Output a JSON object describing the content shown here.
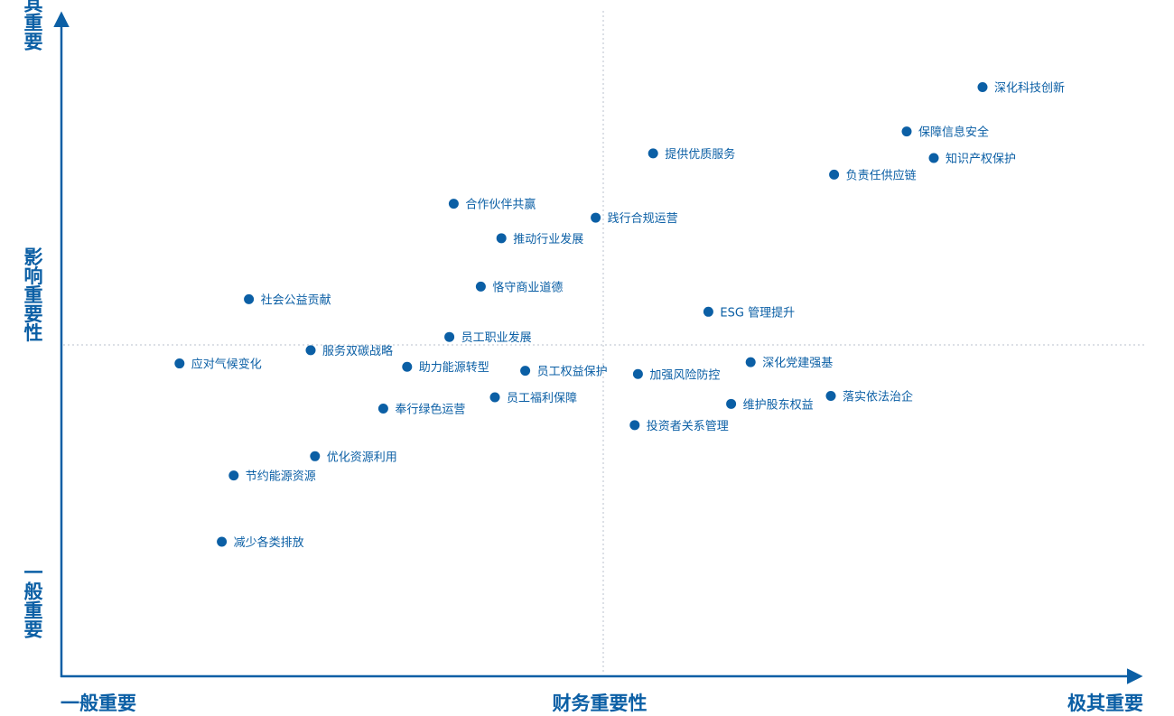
{
  "chart_data": {
    "type": "scatter",
    "xlabel": "财务重要性",
    "ylabel": "影响重要性",
    "x_low_label": "一般重要",
    "x_high_label": "极其重要",
    "y_low_label": "一般重要",
    "y_high_label": "极其重要",
    "xlim": [
      0,
      100
    ],
    "ylim": [
      0,
      100
    ],
    "x_divider": 50,
    "y_divider": 50,
    "grid": false,
    "accent_color": "#0b5fa5",
    "divider_color": "#b8c2cc",
    "points": [
      {
        "label": "深化科技创新",
        "x": 85.0,
        "y": 88.9
      },
      {
        "label": "保障信息安全",
        "x": 78.0,
        "y": 82.2
      },
      {
        "label": "知识产权保护",
        "x": 80.5,
        "y": 78.2
      },
      {
        "label": "负责任供应链",
        "x": 71.3,
        "y": 75.7
      },
      {
        "label": "提供优质服务",
        "x": 54.6,
        "y": 78.9
      },
      {
        "label": "践行合规运营",
        "x": 49.3,
        "y": 69.2
      },
      {
        "label": "合作伙伴共赢",
        "x": 36.2,
        "y": 71.3
      },
      {
        "label": "推动行业发展",
        "x": 40.6,
        "y": 66.1
      },
      {
        "label": "恪守商业道德",
        "x": 38.7,
        "y": 58.8
      },
      {
        "label": "社会公益贡献",
        "x": 17.3,
        "y": 56.9
      },
      {
        "label": "ESG 管理提升",
        "x": 59.7,
        "y": 55.0
      },
      {
        "label": "员工职业发展",
        "x": 35.8,
        "y": 51.2
      },
      {
        "label": "服务双碳战略",
        "x": 23.0,
        "y": 49.2
      },
      {
        "label": "应对气候变化",
        "x": 10.9,
        "y": 47.2
      },
      {
        "label": "助力能源转型",
        "x": 31.9,
        "y": 46.7
      },
      {
        "label": "员工权益保护",
        "x": 42.8,
        "y": 46.1
      },
      {
        "label": "加强风险防控",
        "x": 53.2,
        "y": 45.6
      },
      {
        "label": "深化党建强基",
        "x": 63.6,
        "y": 47.4
      },
      {
        "label": "员工福利保障",
        "x": 40.0,
        "y": 42.1
      },
      {
        "label": "奉行绿色运营",
        "x": 29.7,
        "y": 40.4
      },
      {
        "label": "维护股东权益",
        "x": 61.8,
        "y": 41.1
      },
      {
        "label": "落实依法治企",
        "x": 71.0,
        "y": 42.3
      },
      {
        "label": "投资者关系管理",
        "x": 52.9,
        "y": 37.9
      },
      {
        "label": "优化资源利用",
        "x": 23.4,
        "y": 33.2
      },
      {
        "label": "节约能源资源",
        "x": 15.9,
        "y": 30.3
      },
      {
        "label": "减少各类排放",
        "x": 14.8,
        "y": 20.3
      }
    ]
  }
}
